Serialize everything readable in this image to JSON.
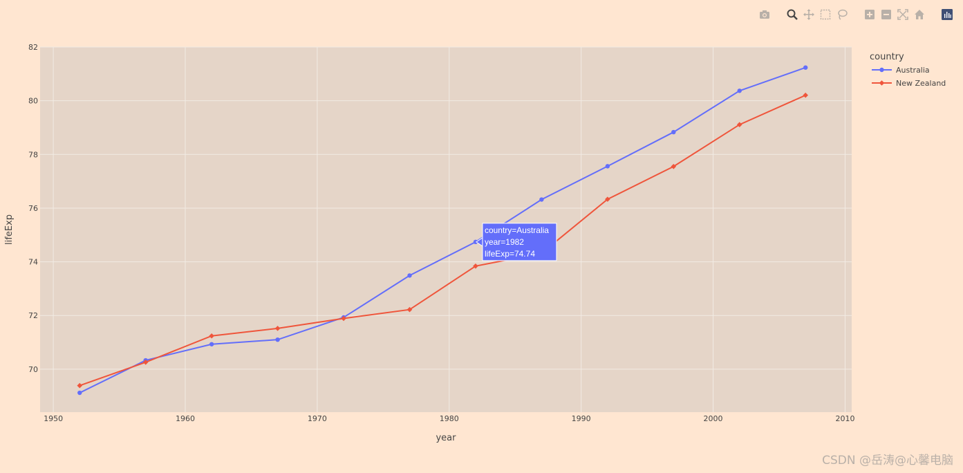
{
  "toolbar": {
    "icons": [
      "camera-icon",
      "zoom-icon",
      "pan-icon",
      "box-select-icon",
      "lasso-icon",
      "zoom-in-icon",
      "zoom-out-icon",
      "autoscale-icon",
      "reset-axes-icon",
      "plotly-logo-icon"
    ]
  },
  "colors": {
    "page_bg": "#ffe6d1",
    "plot_bg": "#e5d5c8",
    "grid": "#f2ebe4",
    "australia": "#636efa",
    "new_zealand": "#ef553b"
  },
  "chart_data": {
    "type": "line",
    "xlabel": "year",
    "ylabel": "lifeExp",
    "xlim": [
      1949,
      2010.5
    ],
    "ylim": [
      68.4,
      82
    ],
    "x_ticks": [
      1950,
      1960,
      1970,
      1980,
      1990,
      2000,
      2010
    ],
    "y_ticks": [
      70,
      72,
      74,
      76,
      78,
      80,
      82
    ],
    "x": [
      1952,
      1957,
      1962,
      1967,
      1972,
      1977,
      1982,
      1987,
      1992,
      1997,
      2002,
      2007
    ],
    "grid": true,
    "legend": {
      "title": "country",
      "position": "top-right"
    },
    "series": [
      {
        "name": "Australia",
        "marker": "circle",
        "values": [
          69.12,
          70.33,
          70.93,
          71.1,
          71.93,
          73.49,
          74.74,
          76.32,
          77.56,
          78.83,
          80.37,
          81.235
        ]
      },
      {
        "name": "New Zealand",
        "marker": "diamond",
        "values": [
          69.39,
          70.26,
          71.24,
          71.52,
          71.89,
          72.22,
          73.84,
          74.32,
          76.33,
          77.55,
          79.11,
          80.204
        ]
      }
    ],
    "hover": {
      "country_line": "country=Australia",
      "year_line": "year=1982",
      "life_line": "lifeExp=74.74",
      "x": 1982,
      "y": 74.74
    }
  },
  "watermark": "CSDN @岳涛@心馨电脑"
}
